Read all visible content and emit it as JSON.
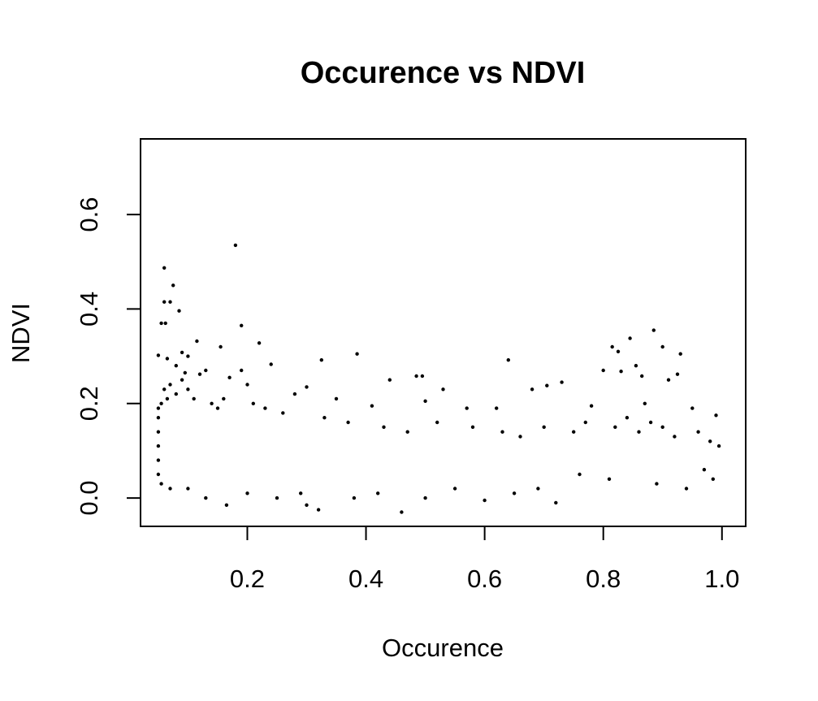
{
  "chart_data": {
    "type": "scatter",
    "title": "Occurence vs NDVI",
    "xlabel": "Occurence",
    "ylabel": "NDVI",
    "xlim": [
      0.02,
      1.04
    ],
    "ylim": [
      -0.06,
      0.76
    ],
    "xticks": [
      {
        "value": 0.2,
        "label": "0.2"
      },
      {
        "value": 0.4,
        "label": "0.4"
      },
      {
        "value": 0.6,
        "label": "0.6"
      },
      {
        "value": 0.8,
        "label": "0.8"
      },
      {
        "value": 1.0,
        "label": "1.0"
      }
    ],
    "yticks": [
      {
        "value": 0.0,
        "label": "0.0"
      },
      {
        "value": 0.2,
        "label": "0.2"
      },
      {
        "value": 0.4,
        "label": "0.4"
      },
      {
        "value": 0.6,
        "label": "0.6"
      }
    ],
    "grid": false,
    "legend": "none",
    "point_color": "#000000",
    "points": [
      [
        0.18,
        0.535
      ],
      [
        0.06,
        0.487
      ],
      [
        0.075,
        0.45
      ],
      [
        0.07,
        0.415
      ],
      [
        0.06,
        0.415
      ],
      [
        0.085,
        0.396
      ],
      [
        0.055,
        0.37
      ],
      [
        0.062,
        0.37
      ],
      [
        0.19,
        0.365
      ],
      [
        0.115,
        0.332
      ],
      [
        0.22,
        0.328
      ],
      [
        0.155,
        0.32
      ],
      [
        0.385,
        0.305
      ],
      [
        0.05,
        0.302
      ],
      [
        0.09,
        0.308
      ],
      [
        0.065,
        0.295
      ],
      [
        0.1,
        0.3
      ],
      [
        0.325,
        0.292
      ],
      [
        0.64,
        0.292
      ],
      [
        0.08,
        0.28
      ],
      [
        0.13,
        0.27
      ],
      [
        0.24,
        0.283
      ],
      [
        0.12,
        0.262
      ],
      [
        0.19,
        0.27
      ],
      [
        0.095,
        0.265
      ],
      [
        0.17,
        0.255
      ],
      [
        0.44,
        0.25
      ],
      [
        0.485,
        0.258
      ],
      [
        0.495,
        0.258
      ],
      [
        0.2,
        0.24
      ],
      [
        0.3,
        0.235
      ],
      [
        0.28,
        0.22
      ],
      [
        0.21,
        0.2
      ],
      [
        0.35,
        0.21
      ],
      [
        0.41,
        0.195
      ],
      [
        0.53,
        0.23
      ],
      [
        0.5,
        0.205
      ],
      [
        0.57,
        0.19
      ],
      [
        0.62,
        0.19
      ],
      [
        0.68,
        0.23
      ],
      [
        0.705,
        0.238
      ],
      [
        0.73,
        0.245
      ],
      [
        0.78,
        0.195
      ],
      [
        0.8,
        0.27
      ],
      [
        0.815,
        0.32
      ],
      [
        0.825,
        0.31
      ],
      [
        0.845,
        0.338
      ],
      [
        0.83,
        0.268
      ],
      [
        0.855,
        0.28
      ],
      [
        0.885,
        0.355
      ],
      [
        0.865,
        0.258
      ],
      [
        0.9,
        0.32
      ],
      [
        0.91,
        0.25
      ],
      [
        0.925,
        0.262
      ],
      [
        0.93,
        0.305
      ],
      [
        0.87,
        0.2
      ],
      [
        0.95,
        0.19
      ],
      [
        0.99,
        0.175
      ],
      [
        0.9,
        0.15
      ],
      [
        0.84,
        0.17
      ],
      [
        0.46,
        -0.03
      ],
      [
        0.32,
        -0.025
      ],
      [
        0.3,
        -0.015
      ],
      [
        0.165,
        -0.015
      ],
      [
        0.72,
        -0.01
      ],
      [
        0.6,
        -0.005
      ],
      [
        0.05,
        0.19
      ],
      [
        0.05,
        0.17
      ],
      [
        0.055,
        0.2
      ],
      [
        0.06,
        0.23
      ],
      [
        0.065,
        0.21
      ],
      [
        0.07,
        0.24
      ],
      [
        0.08,
        0.22
      ],
      [
        0.09,
        0.25
      ],
      [
        0.1,
        0.23
      ],
      [
        0.11,
        0.21
      ],
      [
        0.14,
        0.2
      ],
      [
        0.15,
        0.19
      ],
      [
        0.16,
        0.21
      ],
      [
        0.23,
        0.19
      ],
      [
        0.26,
        0.18
      ],
      [
        0.33,
        0.17
      ],
      [
        0.37,
        0.16
      ],
      [
        0.43,
        0.15
      ],
      [
        0.47,
        0.14
      ],
      [
        0.52,
        0.16
      ],
      [
        0.58,
        0.15
      ],
      [
        0.63,
        0.14
      ],
      [
        0.66,
        0.13
      ],
      [
        0.7,
        0.15
      ],
      [
        0.75,
        0.14
      ],
      [
        0.77,
        0.16
      ],
      [
        0.82,
        0.15
      ],
      [
        0.86,
        0.14
      ],
      [
        0.88,
        0.16
      ],
      [
        0.92,
        0.13
      ],
      [
        0.96,
        0.14
      ],
      [
        0.98,
        0.12
      ],
      [
        0.995,
        0.11
      ],
      [
        0.97,
        0.06
      ],
      [
        0.985,
        0.04
      ],
      [
        0.94,
        0.02
      ],
      [
        0.89,
        0.03
      ],
      [
        0.81,
        0.04
      ],
      [
        0.76,
        0.05
      ],
      [
        0.69,
        0.02
      ],
      [
        0.65,
        0.01
      ],
      [
        0.55,
        0.02
      ],
      [
        0.5,
        0.0
      ],
      [
        0.42,
        0.01
      ],
      [
        0.38,
        0.0
      ],
      [
        0.29,
        0.01
      ],
      [
        0.25,
        0.0
      ],
      [
        0.2,
        0.01
      ],
      [
        0.13,
        0.0
      ],
      [
        0.1,
        0.02
      ],
      [
        0.07,
        0.02
      ],
      [
        0.055,
        0.03
      ],
      [
        0.05,
        0.05
      ],
      [
        0.05,
        0.08
      ],
      [
        0.05,
        0.11
      ],
      [
        0.05,
        0.14
      ]
    ]
  }
}
